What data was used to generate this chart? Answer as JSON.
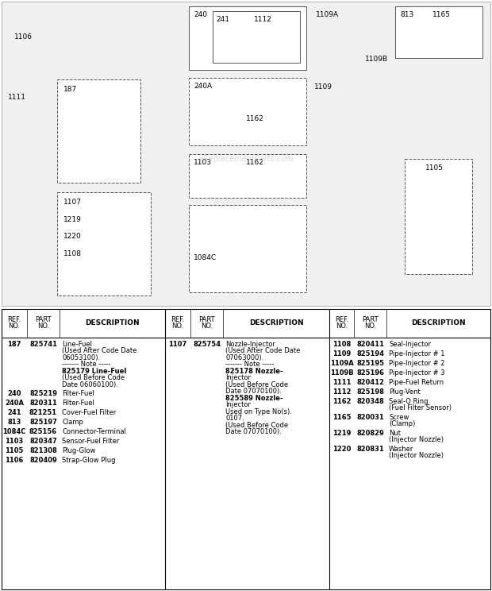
{
  "bg_color": "#f0f0f0",
  "parts_col1": [
    [
      "187",
      "825741",
      "Line-Fuel\n(Used After Code Date\n06053100).\n------- Note -----\n825179 Line-Fuel\n(Used Before Code\nDate 06060100)."
    ],
    [
      "240",
      "825219",
      "Filter-Fuel"
    ],
    [
      "240A",
      "820311",
      "Filter-Fuel"
    ],
    [
      "241",
      "821251",
      "Cover-Fuel Filter"
    ],
    [
      "813",
      "825197",
      "Clamp"
    ],
    [
      "1084C",
      "825156",
      "Connector-Terminal"
    ],
    [
      "1103",
      "820347",
      "Sensor-Fuel Filter"
    ],
    [
      "1105",
      "821308",
      "Plug-Glow"
    ],
    [
      "1106",
      "820409",
      "Strap-Glow Plug"
    ]
  ],
  "parts_col2": [
    [
      "1107",
      "825754",
      "Nozzle-Injector\n(Used After Code Date\n07063000).\n------- Note -----\n825178 Nozzle-\nInjector\n(Used Before Code\nDate 07070100).\n825589 Nozzle-\nInjector\nUsed on Type No(s).\n0107.\n(Used Before Code\nDate 07070100)."
    ]
  ],
  "parts_col3": [
    [
      "1108",
      "820411",
      "Seal-Injector"
    ],
    [
      "1109",
      "825194",
      "Pipe-Injector # 1"
    ],
    [
      "1109A",
      "825195",
      "Pipe-Injector # 2"
    ],
    [
      "1109B",
      "825196",
      "Pipe-Injector # 3"
    ],
    [
      "1111",
      "820412",
      "Pipe-Fuel Return"
    ],
    [
      "1112",
      "825198",
      "Plug-Vent"
    ],
    [
      "1162",
      "820348",
      "Seal-O Ring\n(Fuel Filter Sensor)"
    ],
    [
      "1165",
      "820031",
      "Screw\n(Clamp)"
    ],
    [
      "1219",
      "820829",
      "Nut\n(Injector Nozzle)"
    ],
    [
      "1220",
      "820831",
      "Washer\n(Injector Nozzle)"
    ]
  ]
}
